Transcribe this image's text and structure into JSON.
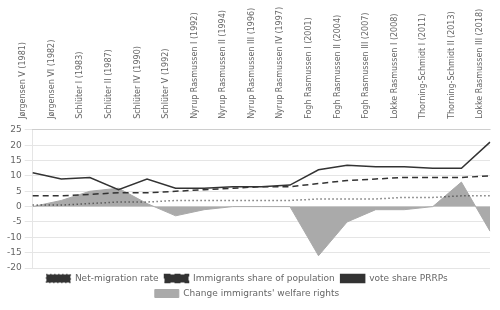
{
  "chart_data": {
    "type": "line",
    "categories": [
      "Jørgensen V (1981)",
      "Jørgensen VI (1982)",
      "Schlüter I (1983)",
      "Schlüter II (1987)",
      "Schlüter IV (1990)",
      "Schlüter V (1992)",
      "Nyrup Rasmussen I (1992)",
      "Nyrup Rasmussen II (1994)",
      "Nyrup Rasmussen III (1996)",
      "Nyrup Rasmussen IV (1997)",
      "Fogh Rasmussen I (2001)",
      "Fogh Rasmussen II (2004)",
      "Fogh Rasmussen III (2007)",
      "Lokke Rasmussen I (2008)",
      "Thorning-Schmidt I (2011)",
      "Thorning-Schmidt II (2013)",
      "Lokke Rasmussen III (2018)"
    ],
    "series": [
      {
        "name": "Change immigrants' welfare rights",
        "type": "area",
        "color": "#aaaaaa",
        "values": [
          0,
          2,
          5,
          6,
          1,
          -3,
          -1,
          0,
          0,
          0,
          -16,
          -5,
          -1,
          -1,
          0,
          8,
          -8
        ]
      },
      {
        "name": "Net-migration rate",
        "type": "line",
        "line_style": "dotted",
        "color": "#333333",
        "values": [
          0.5,
          0.5,
          1.0,
          1.5,
          1.5,
          2.0,
          2.0,
          2.0,
          2.0,
          2.0,
          2.5,
          2.5,
          2.5,
          3.0,
          3.0,
          3.5,
          3.5
        ]
      },
      {
        "name": "Immigrants share of population",
        "type": "line",
        "line_style": "dashed",
        "color": "#333333",
        "values": [
          3.5,
          3.5,
          4.0,
          4.5,
          4.5,
          5.0,
          5.5,
          6.0,
          6.5,
          6.5,
          7.5,
          8.5,
          9.0,
          9.5,
          9.5,
          9.5,
          10.0
        ]
      },
      {
        "name": "vote share PRRPs",
        "type": "line",
        "line_style": "solid",
        "color": "#333333",
        "values": [
          11.0,
          9.0,
          9.5,
          5.5,
          9.0,
          6.0,
          6.0,
          6.5,
          6.5,
          7.0,
          12.0,
          13.5,
          13.0,
          13.0,
          12.5,
          12.5,
          21.0
        ]
      }
    ],
    "ylim": [
      -20,
      25
    ],
    "yticks": [
      -20,
      -15,
      -10,
      -5,
      0,
      5,
      10,
      15,
      20,
      25
    ],
    "grid": true,
    "legend": "bottom"
  }
}
